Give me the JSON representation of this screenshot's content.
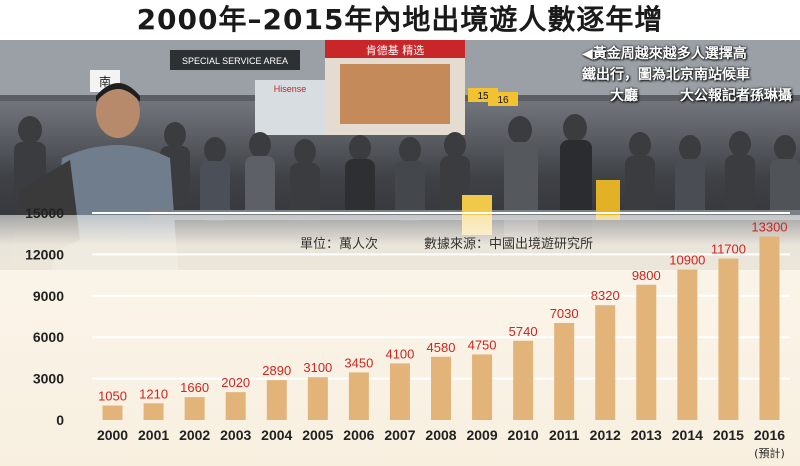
{
  "title": "2000年–2015年內地出境遊人數逐年增",
  "photo_caption": [
    "◀黃金周越來越多人選擇高",
    "鐵出行，圖為北京南站候車",
    "大廳　　　大公報記者孫琳攝"
  ],
  "photo_signs": {
    "special_service": "SPECIAL SERVICE AREA",
    "kfc": "肯德基 精选",
    "hisense": "Hisense",
    "gate_left": "南",
    "gate_15": "15",
    "gate_16": "16"
  },
  "unit_label": "單位：萬人次",
  "source_label": "數據來源：中國出境遊研究所",
  "colors": {
    "bar": "#e3b47a",
    "value_label": "#d2231e",
    "axis_text": "#222222",
    "gridline": "#ffffff"
  },
  "chart_data": {
    "type": "bar",
    "categories": [
      "2000",
      "2001",
      "2002",
      "2003",
      "2004",
      "2005",
      "2006",
      "2007",
      "2008",
      "2009",
      "2010",
      "2011",
      "2012",
      "2013",
      "2014",
      "2015",
      "2016"
    ],
    "category_notes": {
      "2016": "(預計)"
    },
    "values": [
      1050,
      1210,
      1660,
      2020,
      2890,
      3100,
      3450,
      4100,
      4580,
      4750,
      5740,
      7030,
      8320,
      9800,
      10900,
      11700,
      13300
    ],
    "value_labels": [
      "1050",
      "1210",
      "1660",
      "2020",
      "2890",
      "3100",
      "3450",
      "4100",
      "4580",
      "4750",
      "5740",
      "7030",
      "8320",
      "9800",
      "10900",
      "11700",
      "13300"
    ],
    "yticks": [
      0,
      3000,
      6000,
      9000,
      12000,
      15000
    ],
    "ylim": [
      0,
      15000
    ],
    "grid": true,
    "title": "2000年–2015年內地出境遊人數逐年增",
    "xlabel": "",
    "ylabel": ""
  }
}
